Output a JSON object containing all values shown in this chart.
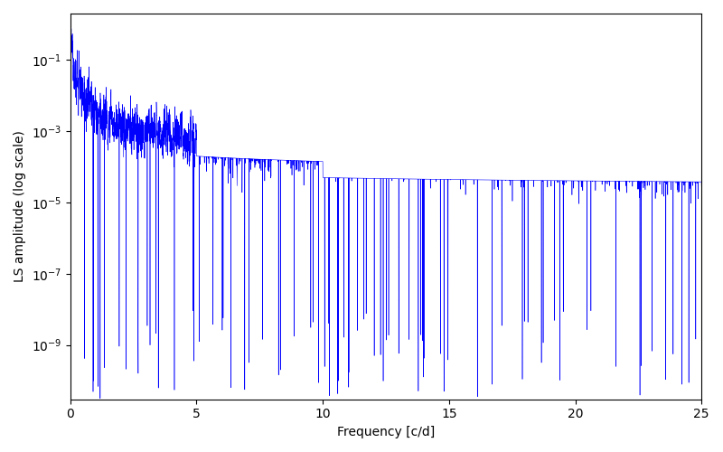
{
  "xlabel": "Frequency [c/d]",
  "ylabel": "LS amplitude (log scale)",
  "line_color": "#0000ff",
  "xlim": [
    0,
    25
  ],
  "xmin": 0,
  "xmax": 25,
  "freq_step": 0.005,
  "seed": 12345,
  "background_color": "#ffffff",
  "figsize": [
    8.0,
    5.0
  ],
  "dpi": 100,
  "yticks": [
    1e-09,
    1e-07,
    1e-05,
    0.001,
    0.1
  ],
  "ylim": [
    3e-11,
    2.0
  ]
}
